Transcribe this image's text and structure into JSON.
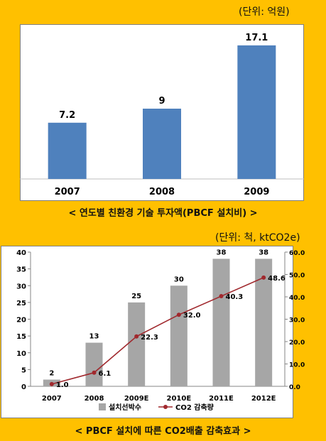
{
  "chart_data": [
    {
      "type": "bar",
      "title": "< 연도별 친환경 기술 투자액(PBCF 설치비) >",
      "unit_label": "(단위: 억원)",
      "categories": [
        "2007",
        "2008",
        "2009"
      ],
      "values": [
        7.2,
        9,
        17.1
      ],
      "data_labels": [
        "7.2",
        "9",
        "17.1"
      ],
      "ylim": [
        0,
        19
      ],
      "bar_color": "#4F81BD",
      "grid": false
    },
    {
      "type": "bar",
      "title": "< PBCF 설치에 따른 CO2배출 감축효과 >",
      "unit_label": "(단위: 척, ktCO2e)",
      "categories": [
        "2007",
        "2008",
        "2009E",
        "2010E",
        "2011E",
        "2012E"
      ],
      "series": [
        {
          "name": "설치선박수",
          "type": "bar",
          "axis": "left",
          "values": [
            2,
            13,
            25,
            30,
            38,
            38
          ],
          "data_labels": [
            "2",
            "13",
            "25",
            "30",
            "38",
            "38"
          ],
          "color": "#A6A6A6"
        },
        {
          "name": "CO2 감축량",
          "type": "line",
          "axis": "right",
          "values": [
            1.0,
            6.1,
            22.3,
            32.0,
            40.3,
            48.6
          ],
          "data_labels": [
            "1.0",
            "6.1",
            "22.3",
            "32.0",
            "40.3",
            "48.6"
          ],
          "color": "#A0282D"
        }
      ],
      "ylim_left": [
        0,
        40
      ],
      "yticks_left": [
        "0",
        "5",
        "10",
        "15",
        "20",
        "25",
        "30",
        "35",
        "40"
      ],
      "ylim_right": [
        0,
        60
      ],
      "yticks_right": [
        "0.0",
        "10.0",
        "20.0",
        "30.0",
        "40.0",
        "50.0",
        "60.0"
      ],
      "legend_position": "bottom",
      "grid": false
    }
  ]
}
